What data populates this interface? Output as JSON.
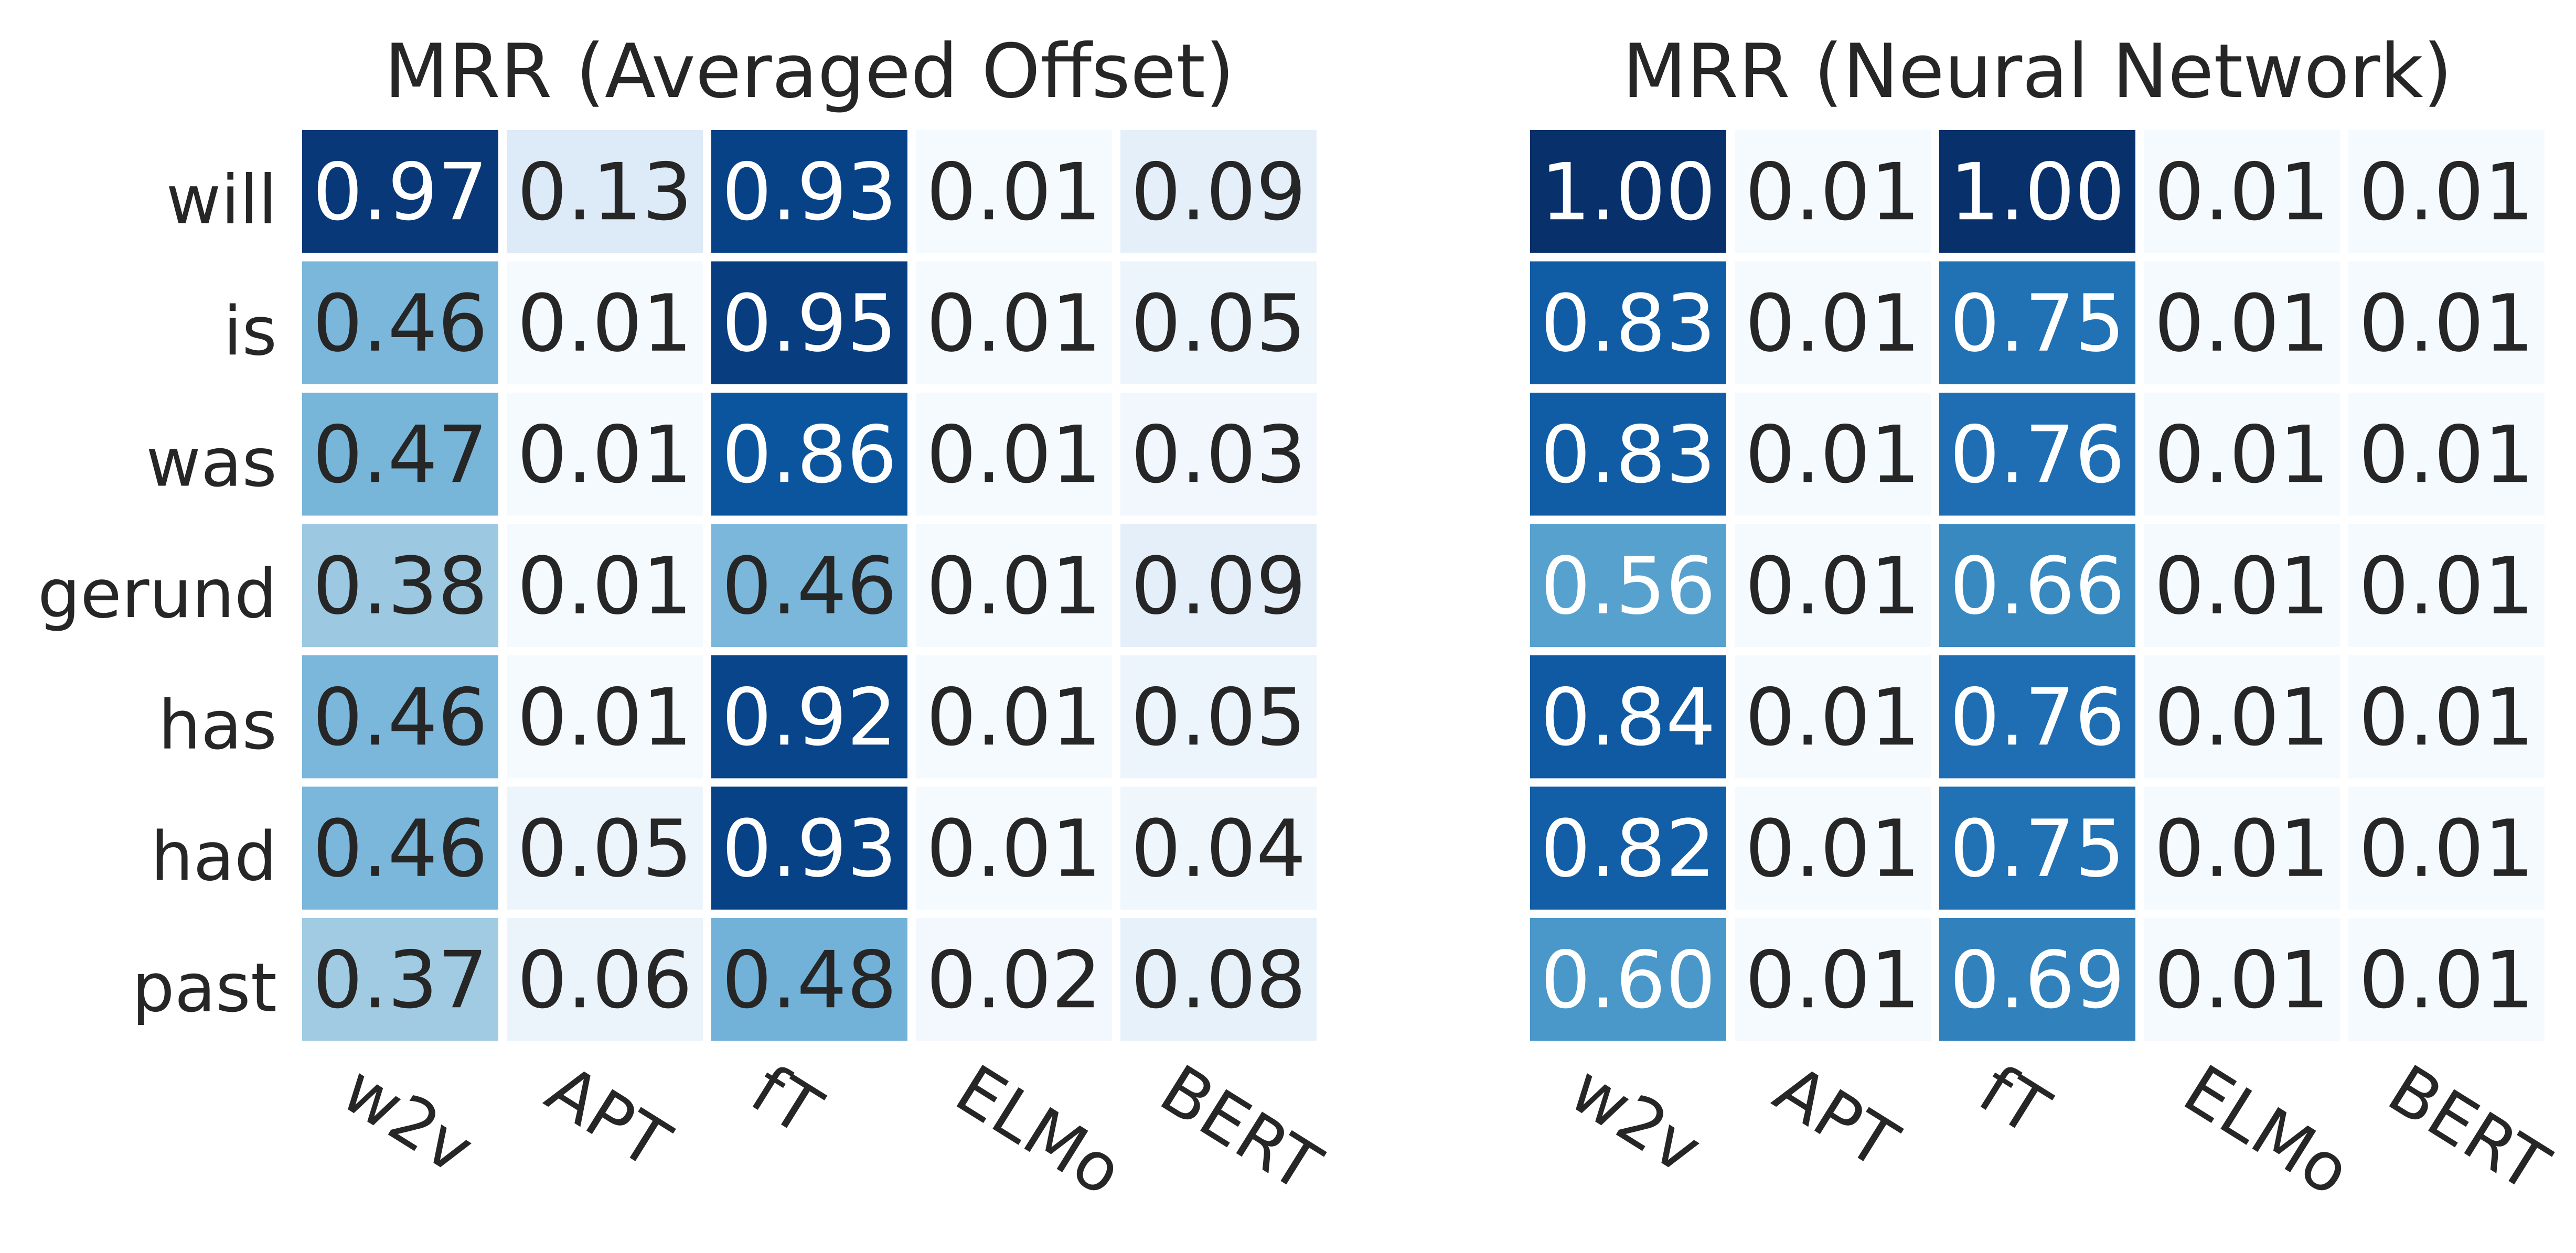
{
  "chart_data": [
    {
      "type": "heatmap",
      "title": "MRR (Averaged Offset)",
      "x_categories": [
        "w2v",
        "APT",
        "fT",
        "ELMo",
        "BERT"
      ],
      "y_categories": [
        "will",
        "is",
        "was",
        "gerund",
        "has",
        "had",
        "past"
      ],
      "values": [
        [
          0.97,
          0.13,
          0.93,
          0.01,
          0.09
        ],
        [
          0.46,
          0.01,
          0.95,
          0.01,
          0.05
        ],
        [
          0.47,
          0.01,
          0.86,
          0.01,
          0.03
        ],
        [
          0.38,
          0.01,
          0.46,
          0.01,
          0.09
        ],
        [
          0.46,
          0.01,
          0.92,
          0.01,
          0.05
        ],
        [
          0.46,
          0.05,
          0.93,
          0.01,
          0.04
        ],
        [
          0.37,
          0.06,
          0.48,
          0.02,
          0.08
        ]
      ],
      "colormap": "Blues",
      "value_range": [
        0,
        1
      ],
      "grid": false
    },
    {
      "type": "heatmap",
      "title": "MRR (Neural Network)",
      "x_categories": [
        "w2v",
        "APT",
        "fT",
        "ELMo",
        "BERT"
      ],
      "y_categories": [
        "will",
        "is",
        "was",
        "gerund",
        "has",
        "had",
        "past"
      ],
      "values": [
        [
          1.0,
          0.01,
          1.0,
          0.01,
          0.01
        ],
        [
          0.83,
          0.01,
          0.75,
          0.01,
          0.01
        ],
        [
          0.83,
          0.01,
          0.76,
          0.01,
          0.01
        ],
        [
          0.56,
          0.01,
          0.66,
          0.01,
          0.01
        ],
        [
          0.84,
          0.01,
          0.76,
          0.01,
          0.01
        ],
        [
          0.82,
          0.01,
          0.75,
          0.01,
          0.01
        ],
        [
          0.6,
          0.01,
          0.69,
          0.01,
          0.01
        ]
      ],
      "colormap": "Blues",
      "value_range": [
        0,
        1
      ],
      "grid": false
    }
  ]
}
